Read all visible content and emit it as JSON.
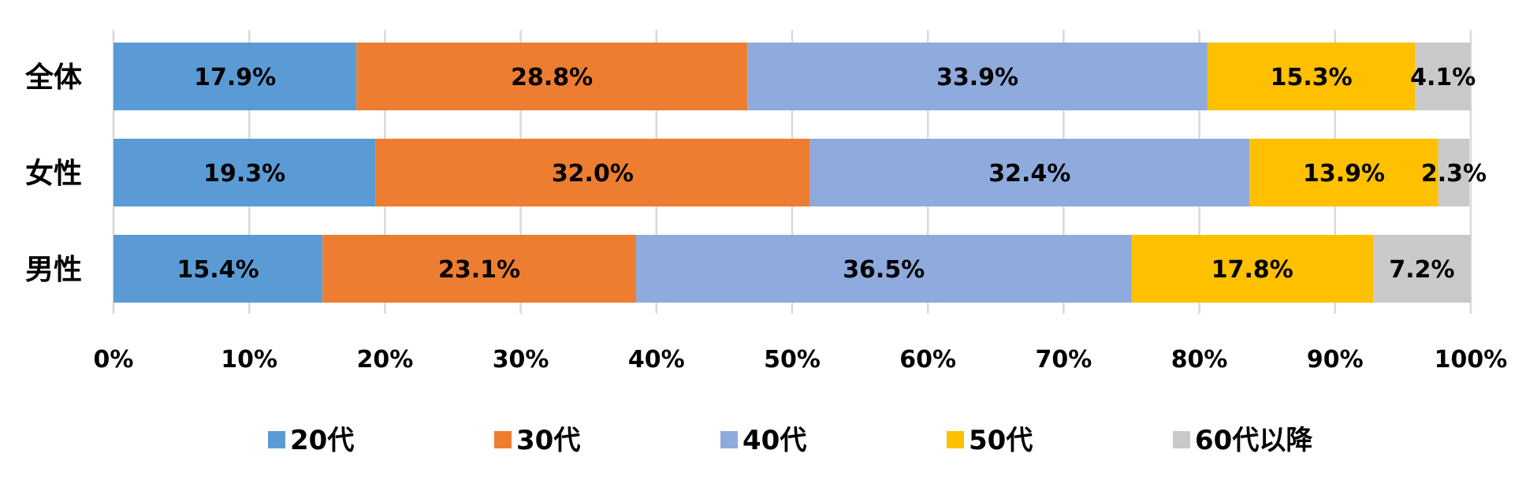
{
  "chart_data": {
    "type": "bar",
    "orientation": "horizontal",
    "stacked": "percent",
    "categories": [
      "全体",
      "女性",
      "男性"
    ],
    "series": [
      {
        "name": "20代",
        "color": "#5B9BD5",
        "values": [
          17.9,
          19.3,
          15.4
        ]
      },
      {
        "name": "30代",
        "color": "#ED7D31",
        "values": [
          28.8,
          32.0,
          23.1
        ]
      },
      {
        "name": "40代",
        "color": "#8FAADC",
        "values": [
          33.9,
          32.4,
          36.5
        ]
      },
      {
        "name": "50代",
        "color": "#FFC000",
        "values": [
          15.3,
          13.9,
          17.8
        ]
      },
      {
        "name": "60代以降",
        "color": "#C9C9C9",
        "values": [
          4.1,
          2.3,
          7.2
        ]
      }
    ],
    "data_labels": [
      [
        "17.9%",
        "28.8%",
        "33.9%",
        "15.3%",
        "4.1%"
      ],
      [
        "19.3%",
        "32.0%",
        "32.4%",
        "13.9%",
        "2.3%"
      ],
      [
        "15.4%",
        "23.1%",
        "36.5%",
        "17.8%",
        "7.2%"
      ]
    ],
    "xlim": [
      0,
      100
    ],
    "xticks": [
      0,
      10,
      20,
      30,
      40,
      50,
      60,
      70,
      80,
      90,
      100
    ],
    "xtick_labels": [
      "0%",
      "10%",
      "20%",
      "30%",
      "40%",
      "50%",
      "60%",
      "70%",
      "80%",
      "90%",
      "100%"
    ],
    "grid": "vertical",
    "legend": "bottom",
    "title": "",
    "xlabel": "",
    "ylabel": ""
  }
}
